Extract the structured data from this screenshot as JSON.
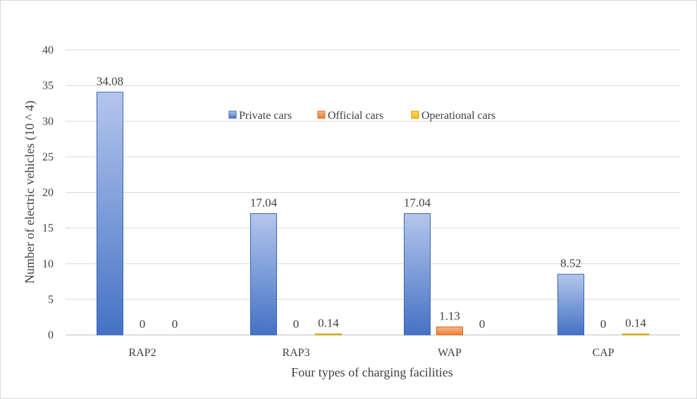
{
  "chart_data": {
    "type": "bar",
    "title": "",
    "xlabel": "Four types of charging facilities",
    "ylabel": "Number of electric vehicles (10 ^ 4)",
    "ylim": [
      0,
      40
    ],
    "yticks": [
      0,
      5,
      10,
      15,
      20,
      25,
      30,
      35,
      40
    ],
    "grid": true,
    "legend_position": "top-center",
    "categories": [
      "RAP2",
      "RAP3",
      "WAP",
      "CAP"
    ],
    "series": [
      {
        "name": "Private cars",
        "values": [
          34.08,
          17.04,
          17.04,
          8.52
        ],
        "labels": [
          "34.08",
          "17.04",
          "17.04",
          "8.52"
        ],
        "color_top": "#b4c6ec",
        "color_bottom": "#4472c4",
        "stroke": "#3b64b4"
      },
      {
        "name": "Official cars",
        "values": [
          0,
          0,
          1.13,
          0
        ],
        "labels": [
          "0",
          "0",
          "1.13",
          "0"
        ],
        "color_top": "#f6b98a",
        "color_bottom": "#ed7d31",
        "stroke": "#d0641c"
      },
      {
        "name": "Operational cars",
        "values": [
          0,
          0.14,
          0,
          0.14
        ],
        "labels": [
          "0",
          "0.14",
          "0",
          "0.14"
        ],
        "color_top": "#ffd966",
        "color_bottom": "#ffc000",
        "stroke": "#c99800"
      }
    ]
  }
}
